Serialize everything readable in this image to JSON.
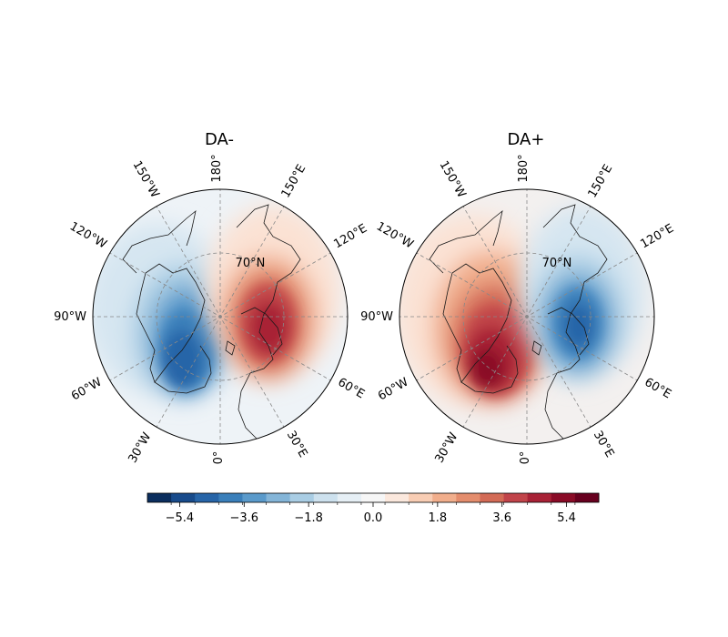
{
  "figure": {
    "panels": [
      {
        "id": "da-minus",
        "title": "DA-",
        "anomaly_sign": -1,
        "longitude_labels": [
          "180°",
          "150°E",
          "120°E",
          "90°W",
          "120°W",
          "150°W",
          "60°W",
          "30°W",
          "0°",
          "30°E",
          "60°E"
        ],
        "latitude_label": "70°N"
      },
      {
        "id": "da-plus",
        "title": "DA+",
        "anomaly_sign": 1,
        "longitude_labels": [
          "180°",
          "150°E",
          "120°E",
          "90°W",
          "120°W",
          "150°W",
          "60°W",
          "30°W",
          "0°",
          "30°E",
          "60°E"
        ],
        "latitude_label": "70°N"
      }
    ],
    "colorbar": {
      "ticks": [
        "−5.4",
        "−3.6",
        "−1.8",
        "0.0",
        "1.8",
        "3.6",
        "5.4"
      ],
      "tick_values": [
        -5.4,
        -3.6,
        -1.8,
        0.0,
        1.8,
        3.6,
        5.4
      ],
      "range": [
        -6.3,
        6.3
      ],
      "levels": 21,
      "colors": [
        "#0b2e5e",
        "#184b8b",
        "#2765a8",
        "#3a7fba",
        "#5a9acb",
        "#84b5d8",
        "#a9cde4",
        "#cde1ee",
        "#e6eff5",
        "#f6f6f6",
        "#fbe8dd",
        "#f8cdb4",
        "#f1ae8c",
        "#e48d6d",
        "#d36b56",
        "#c1444a",
        "#a82236",
        "#8a0b27",
        "#67001f"
      ]
    }
  }
}
